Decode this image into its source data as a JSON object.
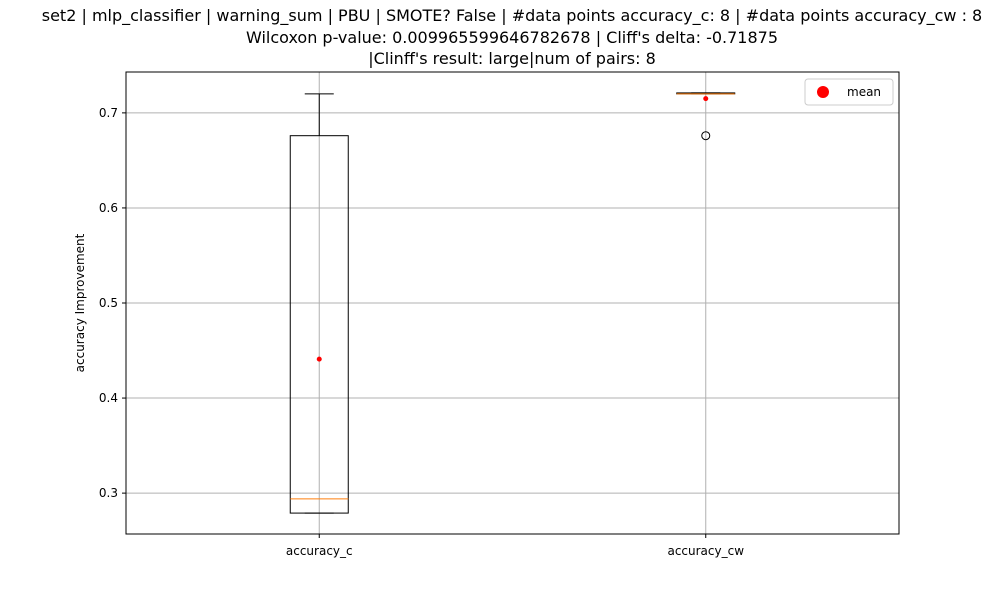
{
  "chart_data": {
    "type": "box",
    "title_lines": [
      "set2 | mlp_classifier | warning_sum | PBU | SMOTE? False | #data points accuracy_c: 8 | #data points accuracy_cw : 8",
      "Wilcoxon p-value: 0.009965599646782678 | Cliff's delta: -0.71875",
      "|Clinff's result: large|num of pairs: 8"
    ],
    "ylabel": "accuracy Improvement",
    "ylim": [
      0.257,
      0.743
    ],
    "yticks": [
      0.3,
      0.4,
      0.5,
      0.6,
      0.7
    ],
    "ytick_labels": [
      "0.3",
      "0.4",
      "0.5",
      "0.6",
      "0.7"
    ],
    "grid": true,
    "legend": {
      "entries": [
        {
          "label": "mean",
          "color": "#ff0000"
        }
      ],
      "position": "upper right"
    },
    "categories": [
      "accuracy_c",
      "accuracy_cw"
    ],
    "boxes": [
      {
        "name": "accuracy_c",
        "whisker_low": 0.279,
        "q1": 0.279,
        "median": 0.294,
        "q3": 0.676,
        "whisker_high": 0.72,
        "mean": 0.441,
        "outliers": []
      },
      {
        "name": "accuracy_cw",
        "whisker_low": 0.72,
        "q1": 0.72,
        "median": 0.72,
        "q3": 0.721,
        "whisker_high": 0.721,
        "mean": 0.715,
        "outliers": [
          0.676
        ]
      }
    ],
    "colors": {
      "box": "#000000",
      "median": "#ff7f0e",
      "mean": "#ff0000",
      "grid": "#b0b0b0"
    }
  }
}
